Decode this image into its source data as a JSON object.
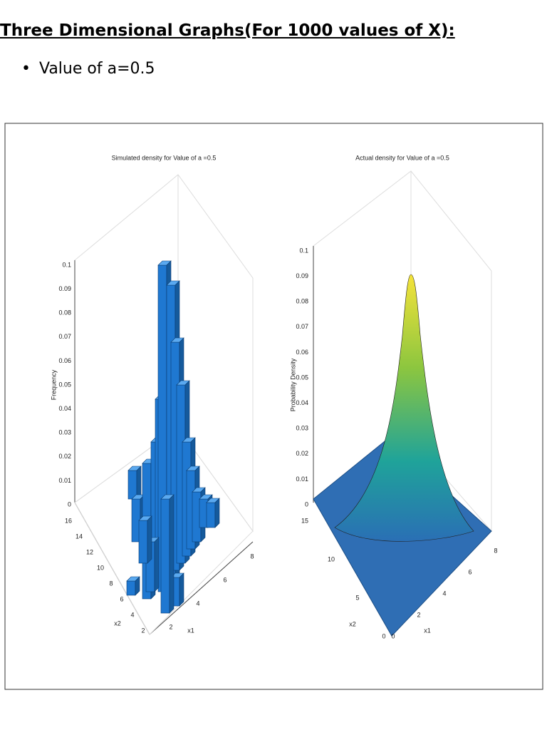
{
  "heading": "Three Dimensional Graphs(For 1000 values of X):",
  "bullets": [
    "Value of a=0.5"
  ],
  "figure": {
    "panels": [
      {
        "title": "Simulated density for Value of a =0.5",
        "z_label": "Frequency",
        "x_label": "x1",
        "y_label": "x2",
        "z_ticks": [
          "0",
          "0.01",
          "0.02",
          "0.03",
          "0.04",
          "0.05",
          "0.06",
          "0.07",
          "0.08",
          "0.09",
          "0.1"
        ],
        "x_ticks": [
          "2",
          "4",
          "6",
          "8"
        ],
        "y_ticks": [
          "16",
          "14",
          "12",
          "10",
          "8",
          "6",
          "4",
          "2"
        ]
      },
      {
        "title": "Actual density for Value of a =0.5",
        "z_label": "Probability Density",
        "x_label": "x1",
        "y_label": "x2",
        "z_ticks": [
          "0",
          "0.01",
          "0.02",
          "0.03",
          "0.04",
          "0.05",
          "0.06",
          "0.07",
          "0.08",
          "0.09",
          "0.1"
        ],
        "x_ticks": [
          "0",
          "2",
          "4",
          "6",
          "8"
        ],
        "y_ticks": [
          "15",
          "10",
          "5",
          "0"
        ]
      }
    ]
  }
}
